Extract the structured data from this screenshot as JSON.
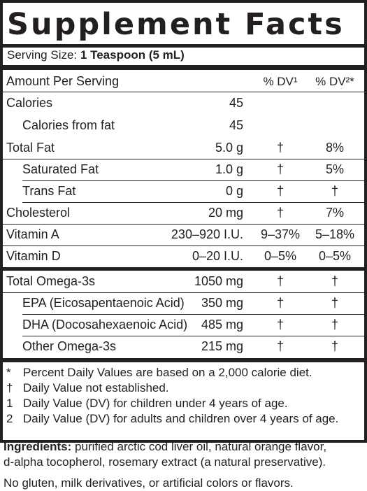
{
  "title": "Supplement Facts",
  "serving": {
    "label": "Serving Size:",
    "value": "1 Teaspoon (5 mL)"
  },
  "header": {
    "amount_per_serving": "Amount Per Serving",
    "dv1": "% DV¹",
    "dv2": "% DV²*"
  },
  "rows": [
    {
      "name": "Calories",
      "amount": "45",
      "dv1": "",
      "dv2": ""
    },
    {
      "name": "Calories from fat",
      "amount": "45",
      "dv1": "",
      "dv2": ""
    },
    {
      "name": "Total Fat",
      "amount": "5.0 g",
      "dv1": "†",
      "dv2": "8%"
    },
    {
      "name": "Saturated Fat",
      "amount": "1.0 g",
      "dv1": "†",
      "dv2": "5%"
    },
    {
      "name": "Trans Fat",
      "amount": "0 g",
      "dv1": "†",
      "dv2": "†"
    },
    {
      "name": "Cholesterol",
      "amount": "20 mg",
      "dv1": "†",
      "dv2": "7%"
    },
    {
      "name": "Vitamin A",
      "amount": "230–920 I.U.",
      "dv1": "9–37%",
      "dv2": "5–18%"
    },
    {
      "name": "Vitamin D",
      "amount": "0–20 I.U.",
      "dv1": "0–5%",
      "dv2": "0–5%"
    },
    {
      "name": "Total Omega-3s",
      "amount": "1050 mg",
      "dv1": "†",
      "dv2": "†"
    },
    {
      "name": "EPA (Eicosapentaenoic Acid)",
      "amount": "350 mg",
      "dv1": "†",
      "dv2": "†"
    },
    {
      "name": "DHA (Docosahexaenoic Acid)",
      "amount": "485 mg",
      "dv1": "†",
      "dv2": "†"
    },
    {
      "name": "Other Omega-3s",
      "amount": "215 mg",
      "dv1": "†",
      "dv2": "†"
    }
  ],
  "footnotes": [
    {
      "symbol": "*",
      "text": "Percent Daily Values are based on a 2,000 calorie diet."
    },
    {
      "symbol": "†",
      "text": "Daily Value not established."
    },
    {
      "symbol": "1",
      "text": "Daily Value (DV) for children under 4 years of age."
    },
    {
      "symbol": "2",
      "text": "Daily Value (DV) for adults and children over 4 years of age."
    }
  ],
  "ingredients": {
    "label": "Ingredients:",
    "line1": "purified arctic cod liver oil, natural orange flavor,",
    "line2": "d-alpha tocopherol, rosemary extract (a natural preservative)."
  },
  "allergen_note": "No gluten, milk derivatives, or artificial colors or flavors."
}
